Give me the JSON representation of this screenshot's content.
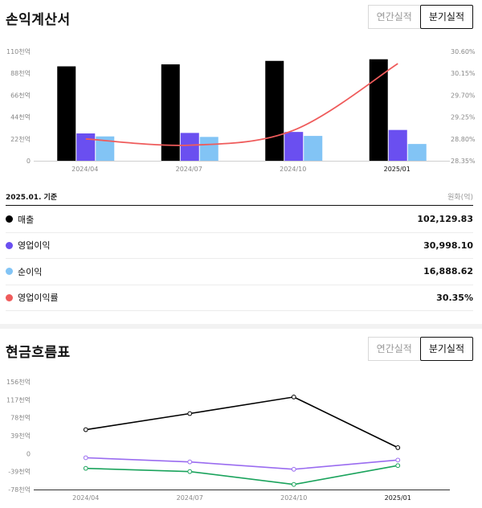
{
  "income": {
    "title": "손익계산서",
    "toggle": {
      "annual": "연간실적",
      "quarterly": "분기실적"
    },
    "basis_label": "2025.01. 기준",
    "unit_label": "원화(억)",
    "rows": [
      {
        "label": "매출",
        "value": "102,129.83",
        "color": "#000000"
      },
      {
        "label": "영업이익",
        "value": "30,998.10",
        "color": "#6a4ff0"
      },
      {
        "label": "순이익",
        "value": "16,888.62",
        "color": "#82c4f5"
      },
      {
        "label": "영업이익률",
        "value": "30.35%",
        "color": "#ef5b5b"
      }
    ]
  },
  "cash": {
    "title": "현금흐름표",
    "toggle": {
      "annual": "연간실적",
      "quarterly": "분기실적"
    }
  },
  "chart_data": [
    {
      "type": "bar",
      "categories": [
        "2024/04",
        "2024/07",
        "2024/10",
        "2025/01"
      ],
      "y_ticks": [
        "110천억",
        "88천억",
        "66천억",
        "44천억",
        "22천억",
        "0"
      ],
      "ylim": [
        0,
        110000
      ],
      "y2_ticks": [
        "30.60%",
        "30.15%",
        "29.70%",
        "29.25%",
        "28.80%",
        "28.35%"
      ],
      "y2lim": [
        28.35,
        30.6
      ],
      "series": [
        {
          "name": "매출",
          "kind": "bar",
          "color": "#000000",
          "values": [
            95000,
            97000,
            100500,
            102129.83
          ]
        },
        {
          "name": "영업이익",
          "kind": "bar",
          "color": "#6a4ff0",
          "values": [
            27500,
            28000,
            29000,
            30998.1
          ]
        },
        {
          "name": "순이익",
          "kind": "bar",
          "color": "#82c4f5",
          "values": [
            24500,
            24000,
            25000,
            16888.62
          ]
        },
        {
          "name": "영업이익률",
          "kind": "line",
          "axis": "right",
          "color": "#ef5b5b",
          "values": [
            28.8,
            28.67,
            28.98,
            30.35
          ]
        }
      ],
      "legend": "none",
      "grid": false
    },
    {
      "type": "line",
      "categories": [
        "2024/04",
        "2024/07",
        "2024/10",
        "2025/01"
      ],
      "y_ticks": [
        "156천억",
        "117천억",
        "78천억",
        "39천억",
        "0",
        "-39천억",
        "-78천억"
      ],
      "ylim": [
        -78000,
        156000
      ],
      "series": [
        {
          "color": "#000000",
          "values": [
            52000,
            87000,
            123000,
            13000
          ]
        },
        {
          "color": "#9a6cf0",
          "values": [
            -9000,
            -18000,
            -34000,
            -14000
          ]
        },
        {
          "color": "#1aa35c",
          "values": [
            -32000,
            -39000,
            -67000,
            -26000
          ]
        }
      ],
      "legend": "none",
      "grid": false
    }
  ]
}
